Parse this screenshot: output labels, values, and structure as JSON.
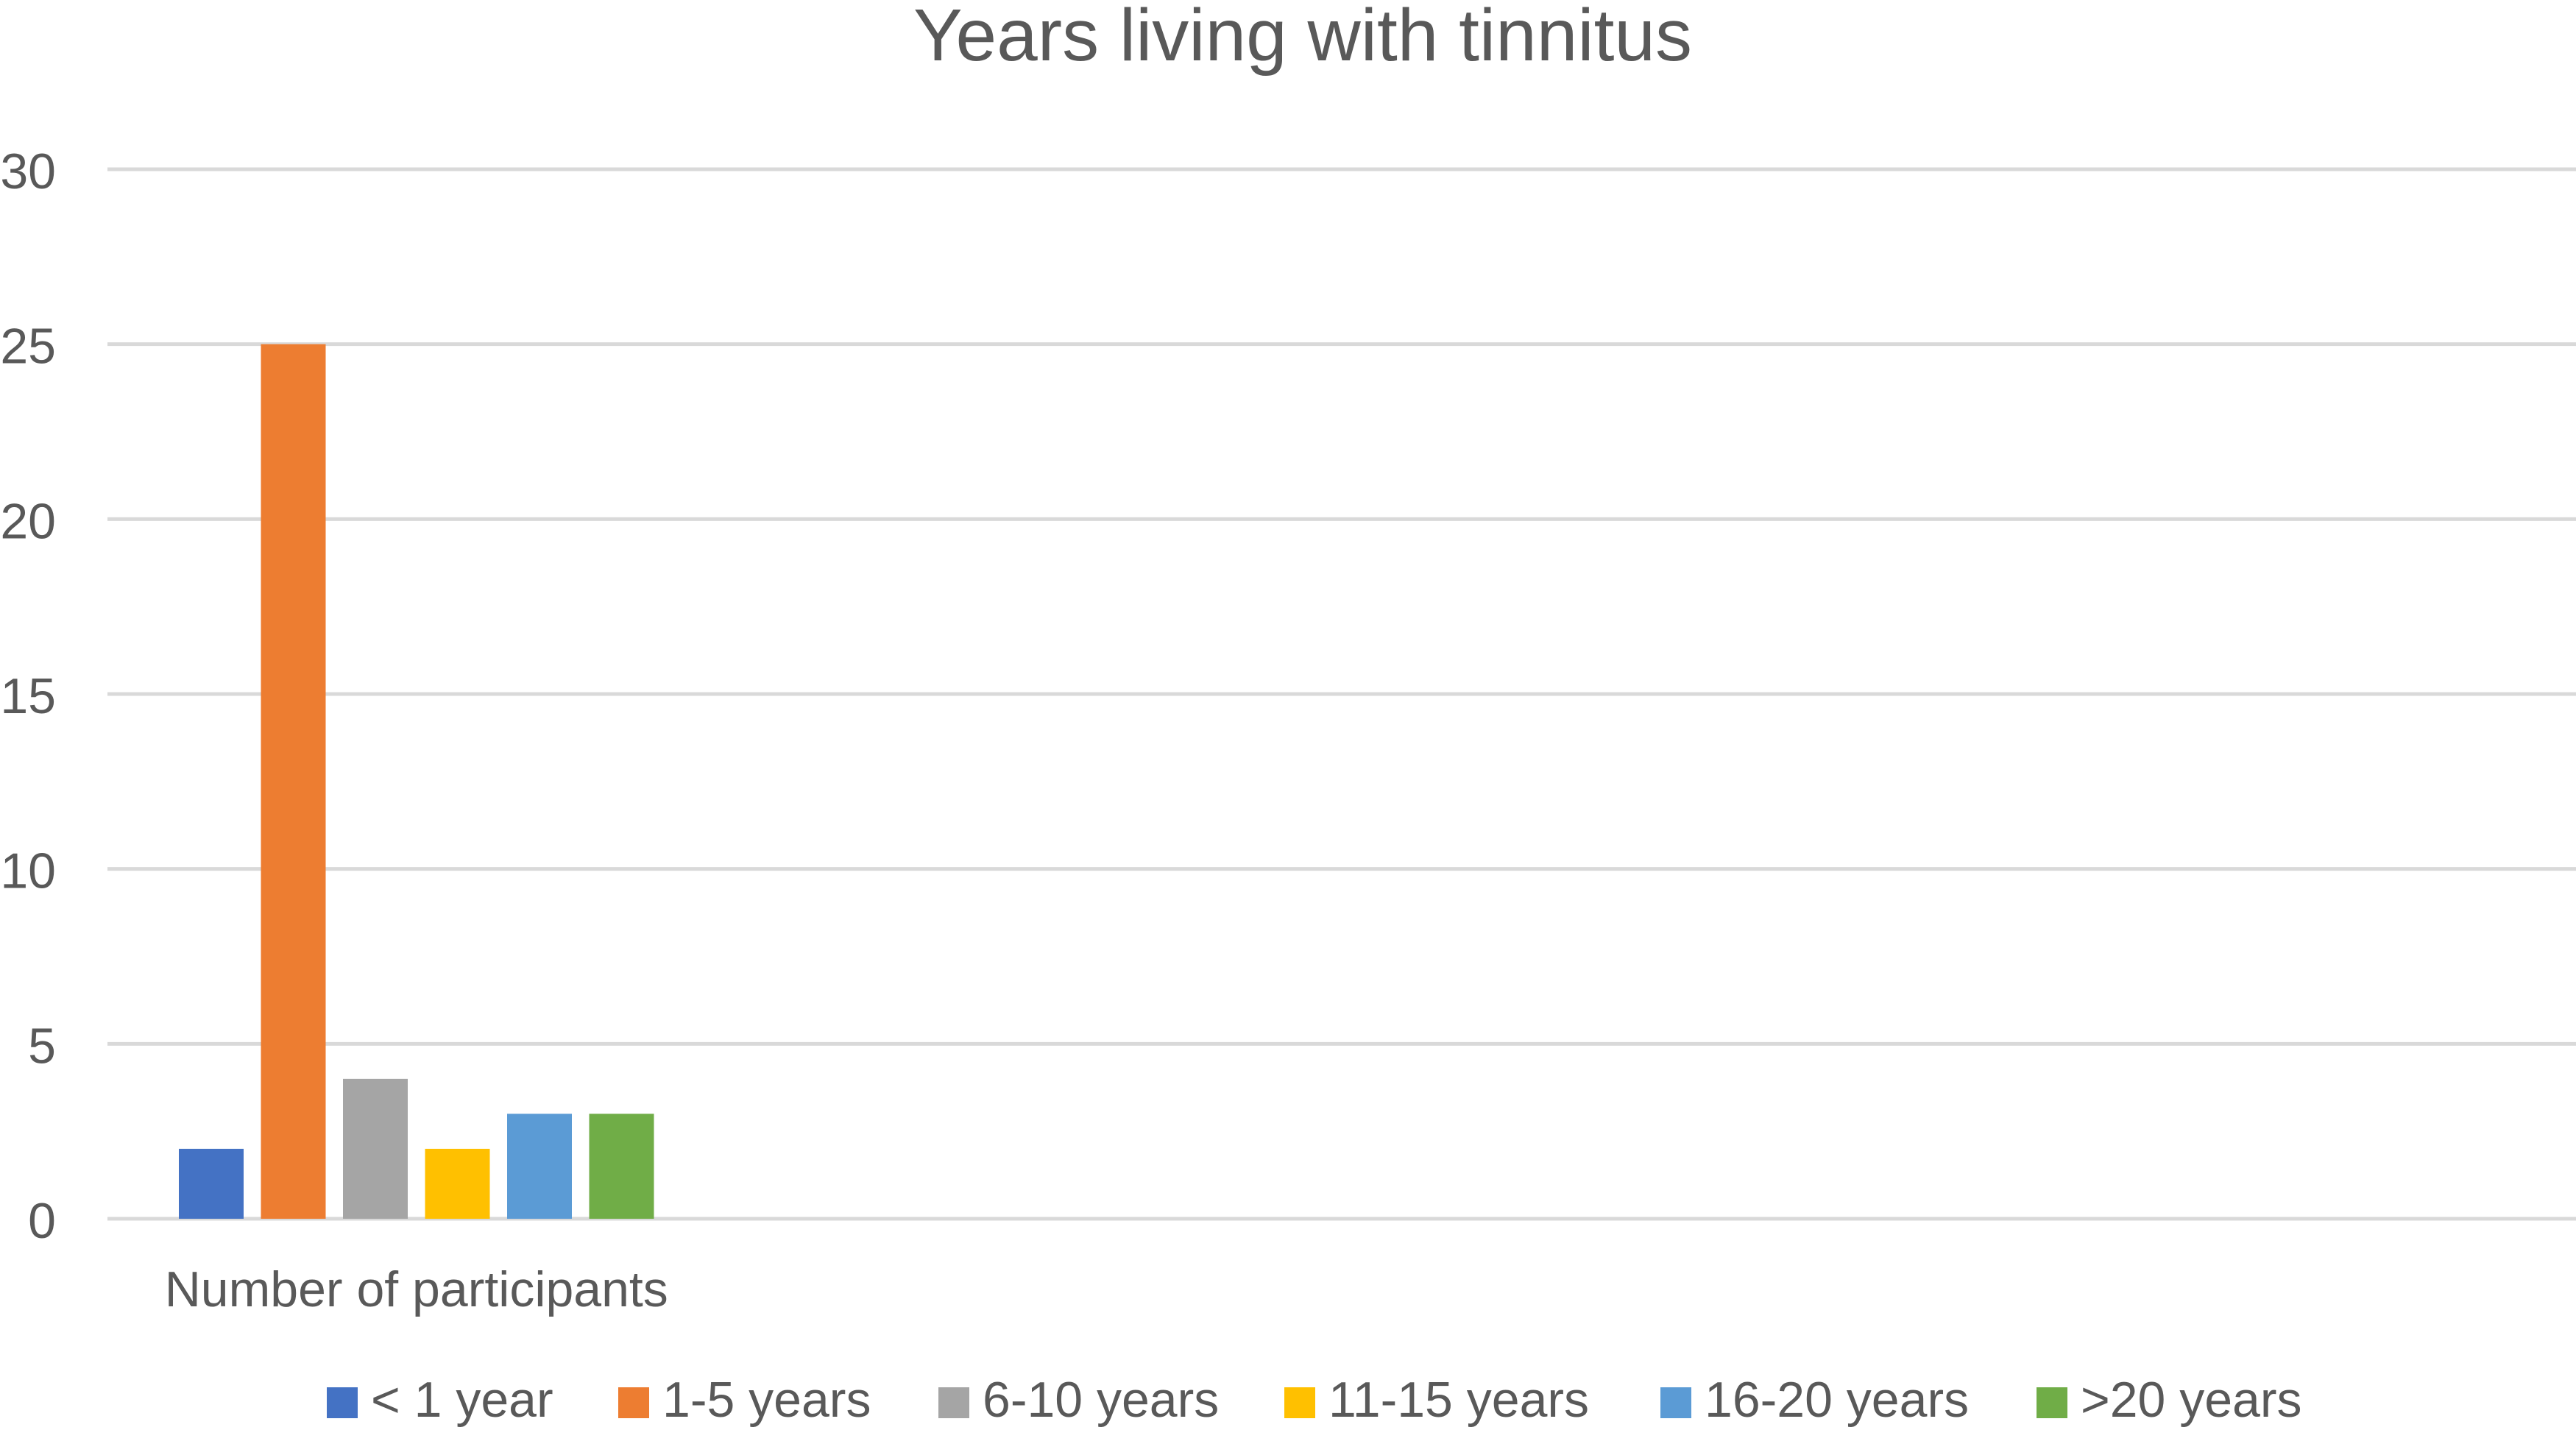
{
  "chart_data": {
    "type": "bar",
    "title": "Years living with tinnitus",
    "categories": [
      "Number of participants"
    ],
    "series": [
      {
        "name": "< 1 year",
        "values": [
          2
        ],
        "color": "#4472C4"
      },
      {
        "name": "1-5 years",
        "values": [
          25
        ],
        "color": "#ED7D31"
      },
      {
        "name": "6-10 years",
        "values": [
          4
        ],
        "color": "#A5A5A5"
      },
      {
        "name": "11-15 years",
        "values": [
          2
        ],
        "color": "#FFC000"
      },
      {
        "name": "16-20 years",
        "values": [
          3
        ],
        "color": "#5B9BD5"
      },
      {
        "name": ">20 years",
        "values": [
          3
        ],
        "color": "#70AD47"
      }
    ],
    "ylim": [
      0,
      30
    ],
    "yticks": [
      0,
      5,
      10,
      15,
      20,
      25,
      30
    ],
    "grid": true,
    "legend_position": "bottom",
    "colors": {
      "text": "#595959",
      "title": "#595959",
      "grid": "#D9D9D9"
    }
  }
}
